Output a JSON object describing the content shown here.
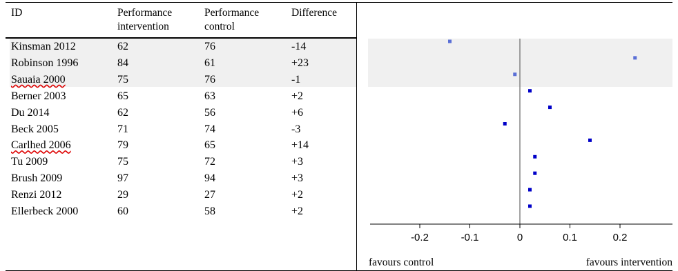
{
  "table": {
    "headers": {
      "id": "ID",
      "intervention_1": "Performance",
      "intervention_2": "intervention",
      "control_1": "Performance",
      "control_2": "control",
      "difference": "Difference"
    },
    "rows": [
      {
        "id": "Kinsman 2012",
        "intervention": "62",
        "control": "76",
        "difference": "-14",
        "spell_flag": false
      },
      {
        "id": "Robinson 1996",
        "intervention": "84",
        "control": "61",
        "difference": "+23",
        "spell_flag": false
      },
      {
        "id": "Sauaia 2000",
        "intervention": "75",
        "control": "76",
        "difference": "-1",
        "spell_flag": true
      },
      {
        "id": "Berner 2003",
        "intervention": "65",
        "control": "63",
        "difference": "+2",
        "spell_flag": false
      },
      {
        "id": "Du 2014",
        "intervention": "62",
        "control": "56",
        "difference": "+6",
        "spell_flag": false
      },
      {
        "id": "Beck 2005",
        "intervention": "71",
        "control": "74",
        "difference": "-3",
        "spell_flag": false
      },
      {
        "id": "Carlhed 2006",
        "intervention": "79",
        "control": "65",
        "difference": "+14",
        "spell_flag": true
      },
      {
        "id": "Tu 2009",
        "intervention": "75",
        "control": "72",
        "difference": "+3",
        "spell_flag": false
      },
      {
        "id": "Brush 2009",
        "intervention": "97",
        "control": "94",
        "difference": "+3",
        "spell_flag": false
      },
      {
        "id": "Renzi 2012",
        "intervention": "29",
        "control": "27",
        "difference": "+2",
        "spell_flag": false
      },
      {
        "id": "Ellerbeck 2000",
        "intervention": "60",
        "control": "58",
        "difference": "+2",
        "spell_flag": false
      }
    ],
    "shaded_rows": [
      0,
      1,
      2
    ]
  },
  "chart_data": {
    "type": "scatter",
    "x": [
      -0.14,
      0.23,
      -0.01,
      0.02,
      0.06,
      -0.03,
      0.14,
      0.03,
      0.03,
      0.02,
      0.02
    ],
    "categories": [
      "Kinsman 2012",
      "Robinson 1996",
      "Sauaia 2000",
      "Berner 2003",
      "Du 2014",
      "Beck 2005",
      "Carlhed 2006",
      "Tu 2009",
      "Brush 2009",
      "Renzi 2012",
      "Ellerbeck 2000"
    ],
    "xlim": [
      -0.3,
      0.3
    ],
    "ticks": [
      -0.2,
      -0.1,
      0,
      0.1,
      0.2
    ],
    "tick_labels": [
      "-0.2",
      "-0.1",
      "0",
      "0.1",
      "0.2"
    ],
    "reference_line": 0,
    "xlabel_left": "favours control",
    "xlabel_right": "favours intervention",
    "point_colors": {
      "highlighted": "#5a6fd6",
      "normal": "#0000c8"
    },
    "shade_color": "#f0f0f0",
    "grid": false
  }
}
